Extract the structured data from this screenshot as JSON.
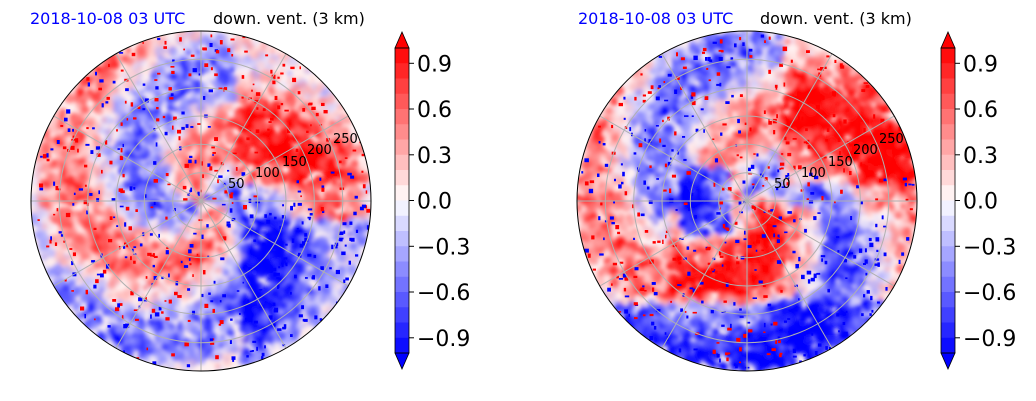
{
  "chart_data": [
    {
      "type": "heatmap",
      "projection": "polar",
      "title_left": "2018-10-08 03 UTC",
      "title_right": "down. vent. (3 km)",
      "title_left_color": "#0000ff",
      "radial_ticks": [
        "50",
        "100",
        "150",
        "200",
        "250"
      ],
      "grid": true,
      "colorbar": {
        "ticks": [
          "0.9",
          "0.6",
          "0.3",
          "0.0",
          "−0.3",
          "−0.6",
          "−0.9"
        ],
        "tick_values": [
          0.9,
          0.6,
          0.3,
          0.0,
          -0.3,
          -0.6,
          -0.9
        ],
        "vmin": -1.0,
        "vmax": 1.0,
        "extend": "both",
        "colormap": "bwr",
        "min_color": "#0000ff",
        "mid_color": "#ffffff",
        "max_color": "#ff0000"
      }
    },
    {
      "type": "heatmap",
      "projection": "polar",
      "title_left": "2018-10-08 03 UTC",
      "title_right": "down. vent. (3 km)",
      "title_left_color": "#0000ff",
      "radial_ticks": [
        "50",
        "100",
        "150",
        "200",
        "250"
      ],
      "grid": true,
      "colorbar": {
        "ticks": [
          "0.9",
          "0.6",
          "0.3",
          "0.0",
          "−0.3",
          "−0.6",
          "−0.9"
        ],
        "tick_values": [
          0.9,
          0.6,
          0.3,
          0.0,
          -0.3,
          -0.6,
          -0.9
        ],
        "vmin": -1.0,
        "vmax": 1.0,
        "extend": "both",
        "colormap": "bwr",
        "min_color": "#0000ff",
        "mid_color": "#ffffff",
        "max_color": "#ff0000"
      }
    }
  ]
}
